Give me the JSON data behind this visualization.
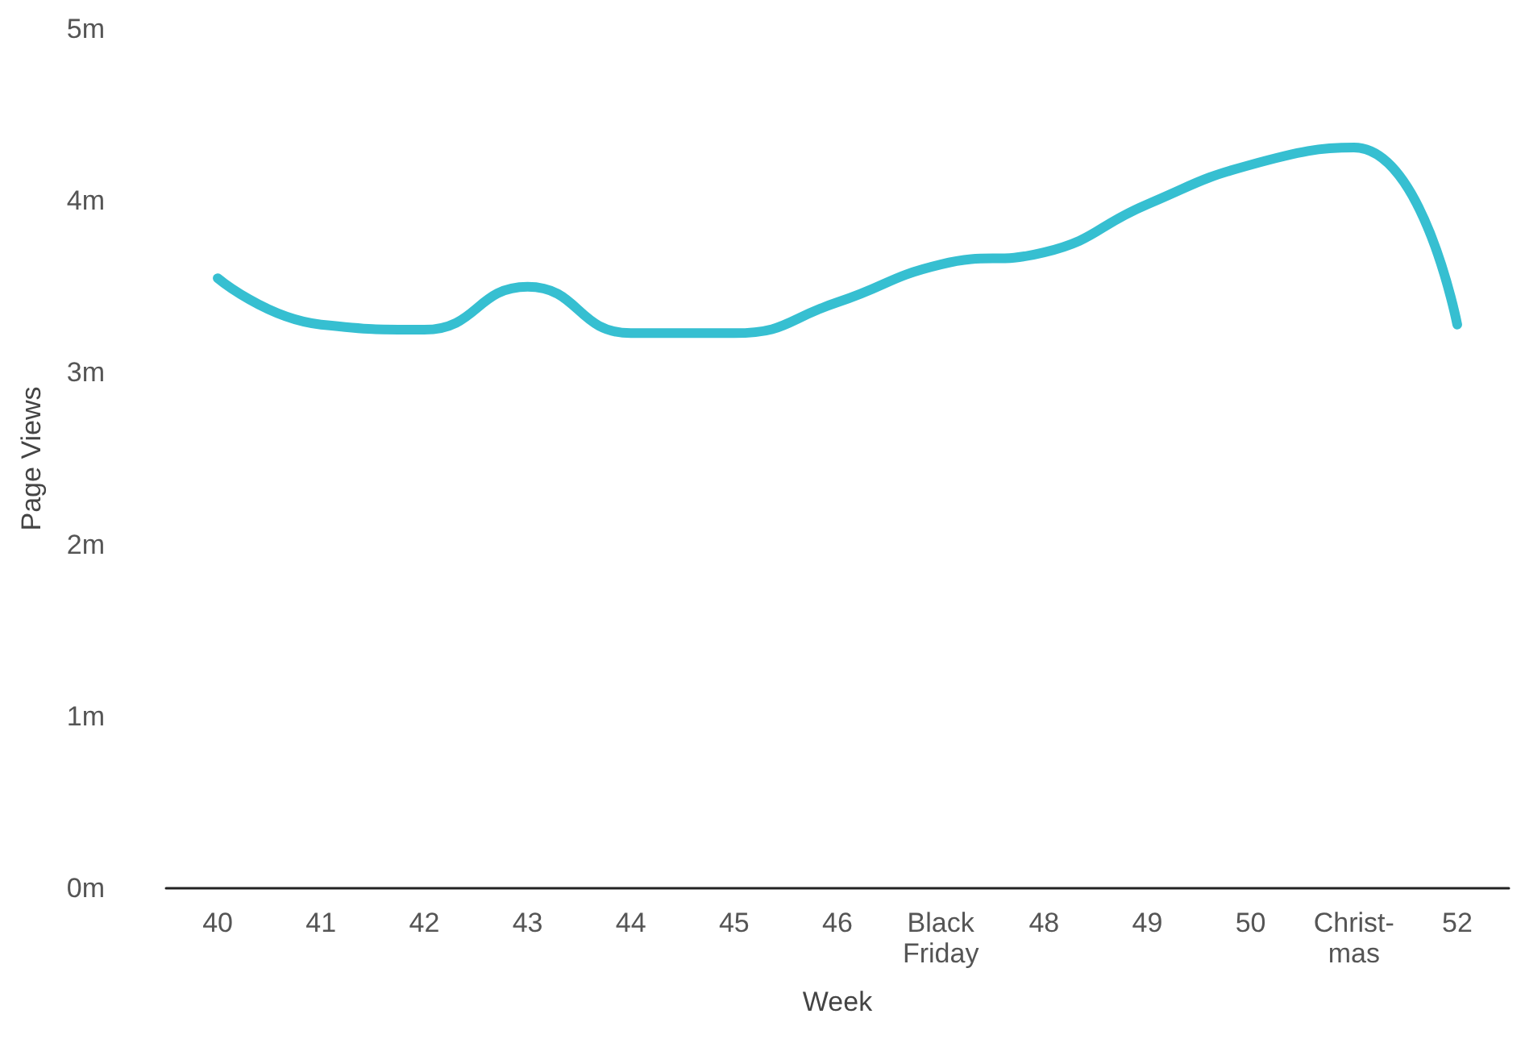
{
  "chart_data": {
    "type": "line",
    "xlabel": "Week",
    "ylabel": "Page Views",
    "categories": [
      "40",
      "41",
      "42",
      "43",
      "44",
      "45",
      "46",
      "Black\nFriday",
      "48",
      "49",
      "50",
      "Christ-\nmas",
      "52"
    ],
    "series": [
      {
        "color": "#36bfd1",
        "values": [
          3.55,
          3.28,
          3.25,
          3.5,
          3.23,
          3.23,
          3.41,
          3.63,
          3.7,
          3.98,
          4.21,
          4.31,
          3.28
        ]
      }
    ],
    "ylim": [
      0,
      5
    ],
    "yticks": [
      {
        "value": 0,
        "label": "0m"
      },
      {
        "value": 1,
        "label": "1m"
      },
      {
        "value": 2,
        "label": "2m"
      },
      {
        "value": 3,
        "label": "3m"
      },
      {
        "value": 4,
        "label": "4m"
      },
      {
        "value": 5,
        "label": "5m"
      }
    ],
    "grid": false,
    "marker": "none",
    "line_style": "solid"
  }
}
